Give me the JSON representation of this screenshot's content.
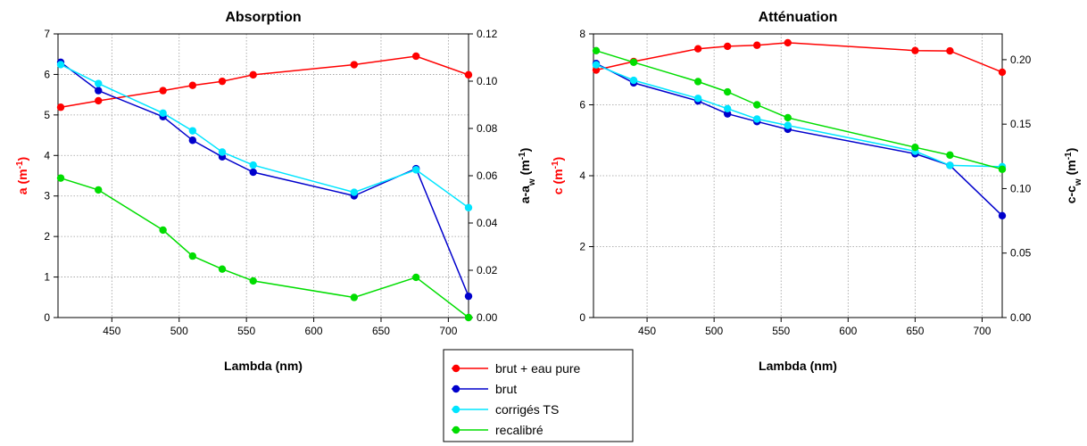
{
  "legend": {
    "entries": [
      {
        "label": "brut + eau pure",
        "color": "#ff0000"
      },
      {
        "label": "brut",
        "color": "#0000cc"
      },
      {
        "label": "corrigés TS",
        "color": "#00e5ff"
      },
      {
        "label": "recalibré",
        "color": "#00dd00"
      }
    ]
  },
  "chart_data": [
    {
      "type": "line",
      "title": "Absorption",
      "xlabel": "Lambda (nm)",
      "ylabel": "a (m-1)",
      "y2label": "a-aw (m-1)",
      "xlim": [
        410,
        715
      ],
      "ylim": [
        0,
        7
      ],
      "y2lim": [
        0,
        0.12
      ],
      "xticks": [
        "450",
        "500",
        "550",
        "600",
        "650",
        "700"
      ],
      "yticks": [
        "0",
        "1",
        "2",
        "3",
        "4",
        "5",
        "6",
        "7"
      ],
      "y2ticks": [
        "0.00",
        "0.02",
        "0.04",
        "0.06",
        "0.08",
        "0.10",
        "0.12"
      ],
      "grid": true,
      "series": [
        {
          "name": "brut + eau pure",
          "color": "#ff0000",
          "axis": "left",
          "x": [
            412,
            440,
            488,
            510,
            532,
            555,
            630,
            676,
            715
          ],
          "y": [
            5.19,
            5.35,
            5.6,
            5.73,
            5.83,
            5.99,
            6.24,
            6.45,
            5.99
          ]
        },
        {
          "name": "brut",
          "color": "#0000cc",
          "axis": "right",
          "x": [
            412,
            440,
            488,
            510,
            532,
            555,
            630,
            676,
            715
          ],
          "y": [
            0.108,
            0.096,
            0.085,
            0.075,
            0.068,
            0.0615,
            0.0515,
            0.063,
            0.009
          ]
        },
        {
          "name": "corrigés TS",
          "color": "#00e5ff",
          "axis": "right",
          "x": [
            412,
            440,
            488,
            510,
            532,
            555,
            630,
            676,
            715
          ],
          "y": [
            0.107,
            0.099,
            0.0865,
            0.079,
            0.07,
            0.0645,
            0.053,
            0.0625,
            0.0465
          ]
        },
        {
          "name": "recalibré",
          "color": "#00dd00",
          "axis": "right",
          "x": [
            412,
            440,
            488,
            510,
            532,
            555,
            630,
            676,
            715
          ],
          "y": [
            0.059,
            0.054,
            0.037,
            0.026,
            0.0205,
            0.0155,
            0.0085,
            0.017,
            0.0
          ]
        }
      ]
    },
    {
      "type": "line",
      "title": "Atténuation",
      "xlabel": "Lambda (nm)",
      "ylabel": "c (m-1)",
      "y2label": "c-cw (m-1)",
      "xlim": [
        410,
        715
      ],
      "ylim": [
        0,
        8
      ],
      "y2lim": [
        0,
        0.22
      ],
      "xticks": [
        "450",
        "500",
        "550",
        "600",
        "650",
        "700"
      ],
      "yticks": [
        "0",
        "2",
        "4",
        "6",
        "8"
      ],
      "y2ticks": [
        "0.00",
        "0.05",
        "0.10",
        "0.15",
        "0.20"
      ],
      "grid": true,
      "series": [
        {
          "name": "brut + eau pure",
          "color": "#ff0000",
          "axis": "left",
          "x": [
            412,
            440,
            488,
            510,
            532,
            555,
            650,
            676,
            715
          ],
          "y": [
            6.98,
            7.22,
            7.58,
            7.65,
            7.68,
            7.75,
            7.53,
            7.52,
            6.92
          ]
        },
        {
          "name": "brut",
          "color": "#0000cc",
          "axis": "right",
          "x": [
            412,
            440,
            488,
            510,
            532,
            555,
            650,
            676,
            715
          ],
          "y": [
            0.197,
            0.182,
            0.168,
            0.158,
            0.152,
            0.146,
            0.127,
            0.118,
            0.079
          ]
        },
        {
          "name": "corrigés TS",
          "color": "#00e5ff",
          "axis": "right",
          "x": [
            412,
            440,
            488,
            510,
            532,
            555,
            650,
            676,
            715
          ],
          "y": [
            0.196,
            0.184,
            0.17,
            0.162,
            0.154,
            0.149,
            0.129,
            0.118,
            0.117
          ]
        },
        {
          "name": "recalibré",
          "color": "#00dd00",
          "axis": "right",
          "x": [
            412,
            440,
            488,
            510,
            532,
            555,
            650,
            676,
            715
          ],
          "y": [
            0.207,
            0.198,
            0.183,
            0.175,
            0.165,
            0.155,
            0.132,
            0.126,
            0.115
          ]
        }
      ]
    }
  ]
}
